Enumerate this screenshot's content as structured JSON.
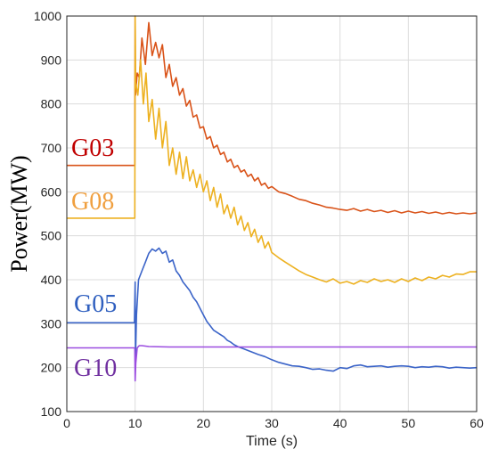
{
  "chart_data": {
    "type": "line",
    "title": "",
    "xlabel": "Time (s)",
    "ylabel": "Power(MW)",
    "xlim": [
      0,
      60
    ],
    "ylim": [
      100,
      1000
    ],
    "xticks": [
      0,
      10,
      20,
      30,
      40,
      50,
      60
    ],
    "yticks": [
      100,
      200,
      300,
      400,
      500,
      600,
      700,
      800,
      900,
      1000
    ],
    "grid": true,
    "legend": "inline labels at left",
    "series": [
      {
        "name": "G03",
        "color": "#d95319",
        "label_color": "#c00000",
        "x": [
          0,
          9.95,
          10.0,
          10.05,
          10.3,
          10.6,
          11.0,
          11.5,
          12.0,
          12.5,
          13.0,
          13.5,
          14.0,
          14.5,
          15.0,
          15.5,
          16.0,
          16.5,
          17.0,
          17.5,
          18.0,
          18.5,
          19.0,
          19.5,
          20.0,
          20.5,
          21.0,
          21.5,
          22.0,
          22.5,
          23.0,
          23.5,
          24.0,
          24.5,
          25.0,
          25.5,
          26.0,
          26.5,
          27.0,
          27.5,
          28.0,
          28.5,
          29.0,
          29.5,
          30.0,
          31.0,
          32.0,
          33.0,
          34.0,
          35.0,
          36.0,
          37.0,
          38.0,
          39.0,
          40.0,
          41.0,
          42.0,
          43.0,
          44.0,
          45.0,
          46.0,
          47.0,
          48.0,
          49.0,
          50.0,
          51.0,
          52.0,
          53.0,
          54.0,
          55.0,
          56.0,
          57.0,
          58.0,
          59.0,
          60.0
        ],
        "y": [
          660,
          660,
          1000,
          820,
          870,
          860,
          950,
          890,
          985,
          910,
          940,
          905,
          935,
          860,
          890,
          840,
          860,
          820,
          835,
          795,
          808,
          770,
          775,
          745,
          748,
          720,
          726,
          700,
          706,
          685,
          690,
          668,
          674,
          655,
          660,
          645,
          650,
          635,
          640,
          625,
          632,
          615,
          620,
          608,
          612,
          600,
          596,
          590,
          583,
          580,
          574,
          570,
          565,
          563,
          560,
          558,
          562,
          556,
          560,
          555,
          558,
          553,
          557,
          552,
          556,
          552,
          555,
          551,
          554,
          550,
          553,
          550,
          552,
          550,
          552
        ]
      },
      {
        "name": "G08",
        "color": "#edb120",
        "label_color": "#f0a040",
        "x": [
          0,
          9.95,
          10.0,
          10.05,
          10.4,
          10.8,
          11.2,
          11.6,
          12.0,
          12.5,
          13.0,
          13.5,
          14.0,
          14.5,
          15.0,
          15.5,
          16.0,
          16.5,
          17.0,
          17.5,
          18.0,
          18.5,
          19.0,
          19.5,
          20.0,
          20.5,
          21.0,
          21.5,
          22.0,
          22.5,
          23.0,
          23.5,
          24.0,
          24.5,
          25.0,
          25.5,
          26.0,
          26.5,
          27.0,
          27.5,
          28.0,
          28.5,
          29.0,
          29.5,
          30.0,
          31.0,
          32.0,
          33.0,
          34.0,
          35.0,
          36.0,
          37.0,
          38.0,
          39.0,
          40.0,
          41.0,
          42.0,
          43.0,
          44.0,
          45.0,
          46.0,
          47.0,
          48.0,
          49.0,
          50.0,
          51.0,
          52.0,
          53.0,
          54.0,
          55.0,
          56.0,
          57.0,
          58.0,
          59.0,
          60.0
        ],
        "y": [
          540,
          540,
          1000,
          850,
          820,
          900,
          800,
          870,
          760,
          810,
          720,
          790,
          700,
          760,
          660,
          700,
          640,
          690,
          630,
          680,
          625,
          650,
          610,
          640,
          600,
          625,
          580,
          610,
          565,
          595,
          550,
          570,
          540,
          565,
          525,
          545,
          512,
          530,
          498,
          515,
          485,
          500,
          472,
          486,
          462,
          450,
          440,
          430,
          420,
          412,
          406,
          400,
          395,
          402,
          392,
          396,
          390,
          398,
          394,
          402,
          396,
          400,
          394,
          402,
          396,
          404,
          398,
          406,
          402,
          410,
          406,
          413,
          412,
          418,
          418
        ]
      },
      {
        "name": "G05",
        "color": "#3b64c8",
        "label_color": "#2f5fbf",
        "x": [
          0,
          9.9,
          10.0,
          10.05,
          10.2,
          10.5,
          11.0,
          11.5,
          12.0,
          12.5,
          13.0,
          13.5,
          14.0,
          14.5,
          15.0,
          15.5,
          16.0,
          16.5,
          17.0,
          17.5,
          18.0,
          18.5,
          19.0,
          19.5,
          20.0,
          20.5,
          21.0,
          21.5,
          22.0,
          22.5,
          23.0,
          23.5,
          24.0,
          24.5,
          25.0,
          26.0,
          27.0,
          28.0,
          29.0,
          30.0,
          31.0,
          32.0,
          33.0,
          34.0,
          35.0,
          36.0,
          37.0,
          38.0,
          39.0,
          40.0,
          41.0,
          42.0,
          43.0,
          44.0,
          45.0,
          46.0,
          47.0,
          48.0,
          49.0,
          50.0,
          51.0,
          52.0,
          53.0,
          54.0,
          55.0,
          56.0,
          57.0,
          58.0,
          59.0,
          60.0
        ],
        "y": [
          302,
          302,
          395,
          220,
          320,
          400,
          420,
          440,
          460,
          470,
          465,
          472,
          460,
          465,
          440,
          445,
          420,
          410,
          395,
          385,
          375,
          360,
          350,
          335,
          320,
          305,
          295,
          285,
          280,
          275,
          270,
          262,
          258,
          252,
          248,
          242,
          236,
          230,
          225,
          218,
          212,
          208,
          204,
          203,
          200,
          196,
          197,
          194,
          192,
          200,
          198,
          204,
          206,
          202,
          203,
          204,
          201,
          203,
          204,
          203,
          200,
          202,
          201,
          203,
          202,
          199,
          201,
          200,
          199,
          200
        ]
      },
      {
        "name": "G10",
        "color": "#7e2f8e",
        "label_color": "#7030a0",
        "line_color": "#9b4de0",
        "x": [
          0,
          9.95,
          10.0,
          10.1,
          10.3,
          10.6,
          11.0,
          12.0,
          15.0,
          20.0,
          30.0,
          40.0,
          50.0,
          60.0
        ],
        "y": [
          245,
          245,
          170,
          210,
          245,
          250,
          250,
          248,
          247,
          247,
          247,
          247,
          247,
          247
        ]
      }
    ]
  }
}
